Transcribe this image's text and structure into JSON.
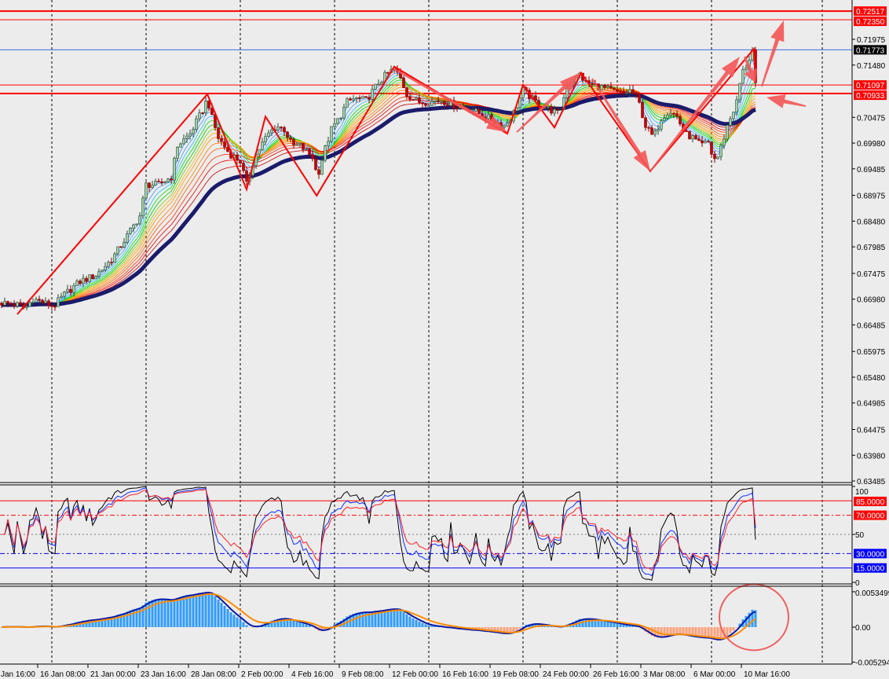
{
  "chart_data": {
    "type": "candlestick",
    "title": "",
    "grid": true,
    "colors": {
      "background": "#ececec",
      "bull": "#9fd4a8",
      "bear": "#c40000",
      "ma_slow": "#1b1b6b",
      "annotation": "#ff0000",
      "arrow": "#f55555",
      "current_price": "#3a6fe0"
    },
    "price_axis": {
      "ticks": [
        "0.71975",
        "0.71480",
        "0.70475",
        "0.69980",
        "0.69485",
        "0.68975",
        "0.68480",
        "0.67985",
        "0.67475",
        "0.66980",
        "0.66485",
        "0.65975",
        "0.65480",
        "0.64985",
        "0.64475",
        "0.63980",
        "0.63485"
      ],
      "levels": [
        {
          "value": "0.72517",
          "color": "#ff0000",
          "style": "thick"
        },
        {
          "value": "0.72350",
          "color": "#ff0000",
          "style": "thin"
        },
        {
          "value": "0.71773",
          "color": "#3a6fe0",
          "style": "current",
          "label_bg": "#000000"
        },
        {
          "value": "0.71097",
          "color": "#ff0000",
          "style": "thin"
        },
        {
          "value": "0.70933",
          "color": "#ff0000",
          "style": "thick"
        }
      ]
    },
    "time_axis": [
      {
        "bar": -4,
        "label": "Jan 16:00"
      },
      {
        "bar": 12,
        "label": "16 Jan 08:00"
      },
      {
        "bar": 28,
        "label": "21 Jan 00:00"
      },
      {
        "bar": 44,
        "label": "23 Jan 16:00"
      },
      {
        "bar": 60,
        "label": "28 Jan 08:00"
      },
      {
        "bar": 76,
        "label": "2 Feb 00:00"
      },
      {
        "bar": 92,
        "label": "4 Feb 16:00"
      },
      {
        "bar": 108,
        "label": "9 Feb 08:00"
      },
      {
        "bar": 124,
        "label": "12 Feb 00:00"
      },
      {
        "bar": 140,
        "label": "16 Feb 16:00"
      },
      {
        "bar": 156,
        "label": "19 Feb 08:00"
      },
      {
        "bar": 172,
        "label": "24 Feb 00:00"
      },
      {
        "bar": 188,
        "label": "26 Feb 16:00"
      },
      {
        "bar": 204,
        "label": "3 Mar 08:00"
      },
      {
        "bar": 220,
        "label": "6 Mar 00:00"
      },
      {
        "bar": 236,
        "label": "10 Mar 16:00"
      }
    ],
    "close_keypoints": [
      [
        0,
        0.6691
      ],
      [
        5,
        0.6687
      ],
      [
        7.5,
        0.668
      ],
      [
        10,
        0.6699
      ],
      [
        16.5,
        0.6684
      ],
      [
        20,
        0.6707
      ],
      [
        25,
        0.6732
      ],
      [
        30,
        0.6744
      ],
      [
        35,
        0.6774
      ],
      [
        40,
        0.682
      ],
      [
        44,
        0.6858
      ],
      [
        46,
        0.6918
      ],
      [
        50,
        0.6918
      ],
      [
        54,
        0.6933
      ],
      [
        56,
        0.6993
      ],
      [
        60,
        0.7016
      ],
      [
        64,
        0.7061
      ],
      [
        65.5,
        0.7084
      ],
      [
        67,
        0.7046
      ],
      [
        69,
        0.7008
      ],
      [
        72.5,
        0.6978
      ],
      [
        76,
        0.6963
      ],
      [
        78,
        0.6918
      ],
      [
        80.5,
        0.6971
      ],
      [
        82.5,
        0.6993
      ],
      [
        85,
        0.7016
      ],
      [
        87.5,
        0.7031
      ],
      [
        90,
        0.7024
      ],
      [
        92.5,
        0.6993
      ],
      [
        95,
        0.6993
      ],
      [
        99,
        0.6971
      ],
      [
        100.5,
        0.6933
      ],
      [
        102.5,
        0.6978
      ],
      [
        105,
        0.7024
      ],
      [
        107.5,
        0.7046
      ],
      [
        110,
        0.7077
      ],
      [
        112.5,
        0.7084
      ],
      [
        116,
        0.708
      ],
      [
        120,
        0.7114
      ],
      [
        122.5,
        0.713
      ],
      [
        125,
        0.714
      ],
      [
        127,
        0.7122
      ],
      [
        129,
        0.7092
      ],
      [
        132.5,
        0.7077
      ],
      [
        136,
        0.7077
      ],
      [
        140,
        0.708
      ],
      [
        145,
        0.7069
      ],
      [
        150,
        0.7061
      ],
      [
        155,
        0.7046
      ],
      [
        160,
        0.7031
      ],
      [
        162.5,
        0.7049
      ],
      [
        166,
        0.7099
      ],
      [
        170,
        0.7077
      ],
      [
        175,
        0.7061
      ],
      [
        177.5,
        0.7054
      ],
      [
        180,
        0.7107
      ],
      [
        184,
        0.713
      ],
      [
        186,
        0.7114
      ],
      [
        190,
        0.7107
      ],
      [
        194,
        0.7099
      ],
      [
        197.5,
        0.7092
      ],
      [
        200,
        0.7099
      ],
      [
        202.5,
        0.7084
      ],
      [
        205,
        0.7031
      ],
      [
        207.5,
        0.7008
      ],
      [
        210,
        0.7046
      ],
      [
        212.5,
        0.7061
      ],
      [
        215,
        0.7049
      ],
      [
        217.5,
        0.7016
      ],
      [
        220,
        0.7008
      ],
      [
        222.5,
        0.6993
      ],
      [
        225,
        0.6999
      ],
      [
        226,
        0.6978
      ],
      [
        227.5,
        0.6963
      ],
      [
        229.5,
        0.6999
      ],
      [
        231,
        0.7031
      ],
      [
        234,
        0.7077
      ],
      [
        235.5,
        0.713
      ],
      [
        237.5,
        0.7152
      ],
      [
        239,
        0.7177
      ],
      [
        240,
        0.7114
      ]
    ],
    "zigzag": [
      [
        5,
        0.6669
      ],
      [
        65.5,
        0.7092
      ],
      [
        78,
        0.6909
      ],
      [
        84,
        0.7049
      ],
      [
        100.3,
        0.6897
      ],
      [
        125,
        0.7145
      ],
      [
        161,
        0.7016
      ],
      [
        166,
        0.711
      ],
      [
        176,
        0.7028
      ],
      [
        184.5,
        0.7133
      ],
      [
        206.5,
        0.6944
      ],
      [
        239.5,
        0.7179
      ],
      [
        240,
        0.7114
      ]
    ],
    "arrows": [
      [
        [
          125,
          0.714
        ],
        [
          161,
          0.7019
        ]
      ],
      [
        [
          164,
          0.7019
        ],
        [
          184,
          0.7133
        ]
      ],
      [
        [
          188,
          0.7122
        ],
        [
          206.5,
          0.6944
        ]
      ],
      [
        [
          206.5,
          0.6944
        ],
        [
          235,
          0.7164
        ]
      ],
      [
        [
          236.5,
          0.7164
        ],
        [
          240,
          0.7114
        ]
      ],
      [
        [
          242,
          0.7107
        ],
        [
          249,
          0.7234
        ]
      ],
      [
        [
          256,
          0.7069
        ],
        [
          243.5,
          0.7086
        ]
      ]
    ],
    "rsi": {
      "ticks": [
        "100",
        "50",
        "0"
      ],
      "levels": [
        {
          "value": "85.0000",
          "color": "#ff0000",
          "style": "solid"
        },
        {
          "value": "70.0000",
          "color": "#ff0000",
          "style": "dashdot"
        },
        {
          "value": "30.0000",
          "color": "#0000ff",
          "style": "dashdot"
        },
        {
          "value": "15.0000",
          "color": "#0000ff",
          "style": "solid"
        }
      ]
    },
    "macd": {
      "ticks": [
        "0.0053499",
        "0.00",
        "-0.005294"
      ],
      "pos_color": "#2f9bff",
      "neg_color": "#ffa07a",
      "line_color": "#0a1aa8",
      "signal_color": "#ff8c00",
      "highlight": {
        "bar": 240,
        "value": 0.0015
      }
    }
  }
}
